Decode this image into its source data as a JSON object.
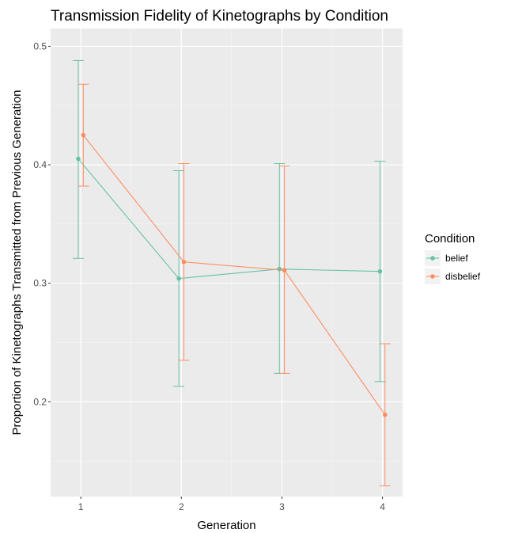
{
  "chart_data": {
    "type": "line",
    "title": "Transmission Fidelity of Kinetographs by Condition",
    "xlabel": "Generation",
    "ylabel": "Proportion of Kinetographs Transmitted from Previous Generation",
    "x": [
      1,
      2,
      3,
      4
    ],
    "x_tick_labels": [
      "1",
      "2",
      "3",
      "4"
    ],
    "y_ticks": [
      0.2,
      0.3,
      0.4,
      0.5
    ],
    "y_tick_labels": [
      "0.2",
      "0.3",
      "0.4",
      "0.5"
    ],
    "xlim": [
      0.7,
      4.2
    ],
    "ylim": [
      0.12,
      0.515
    ],
    "grid": true,
    "legend": {
      "title": "Condition",
      "placement": "right"
    },
    "error_bars": true,
    "series": [
      {
        "name": "belief",
        "color": "#66c2a5",
        "values": [
          0.405,
          0.304,
          0.312,
          0.31
        ],
        "ci_low": [
          0.321,
          0.213,
          0.224,
          0.217
        ],
        "ci_high": [
          0.488,
          0.395,
          0.401,
          0.403
        ]
      },
      {
        "name": "disbelief",
        "color": "#fc8d62",
        "values": [
          0.425,
          0.318,
          0.311,
          0.189
        ],
        "ci_low": [
          0.382,
          0.235,
          0.224,
          0.129
        ],
        "ci_high": [
          0.468,
          0.401,
          0.399,
          0.249
        ]
      }
    ]
  }
}
